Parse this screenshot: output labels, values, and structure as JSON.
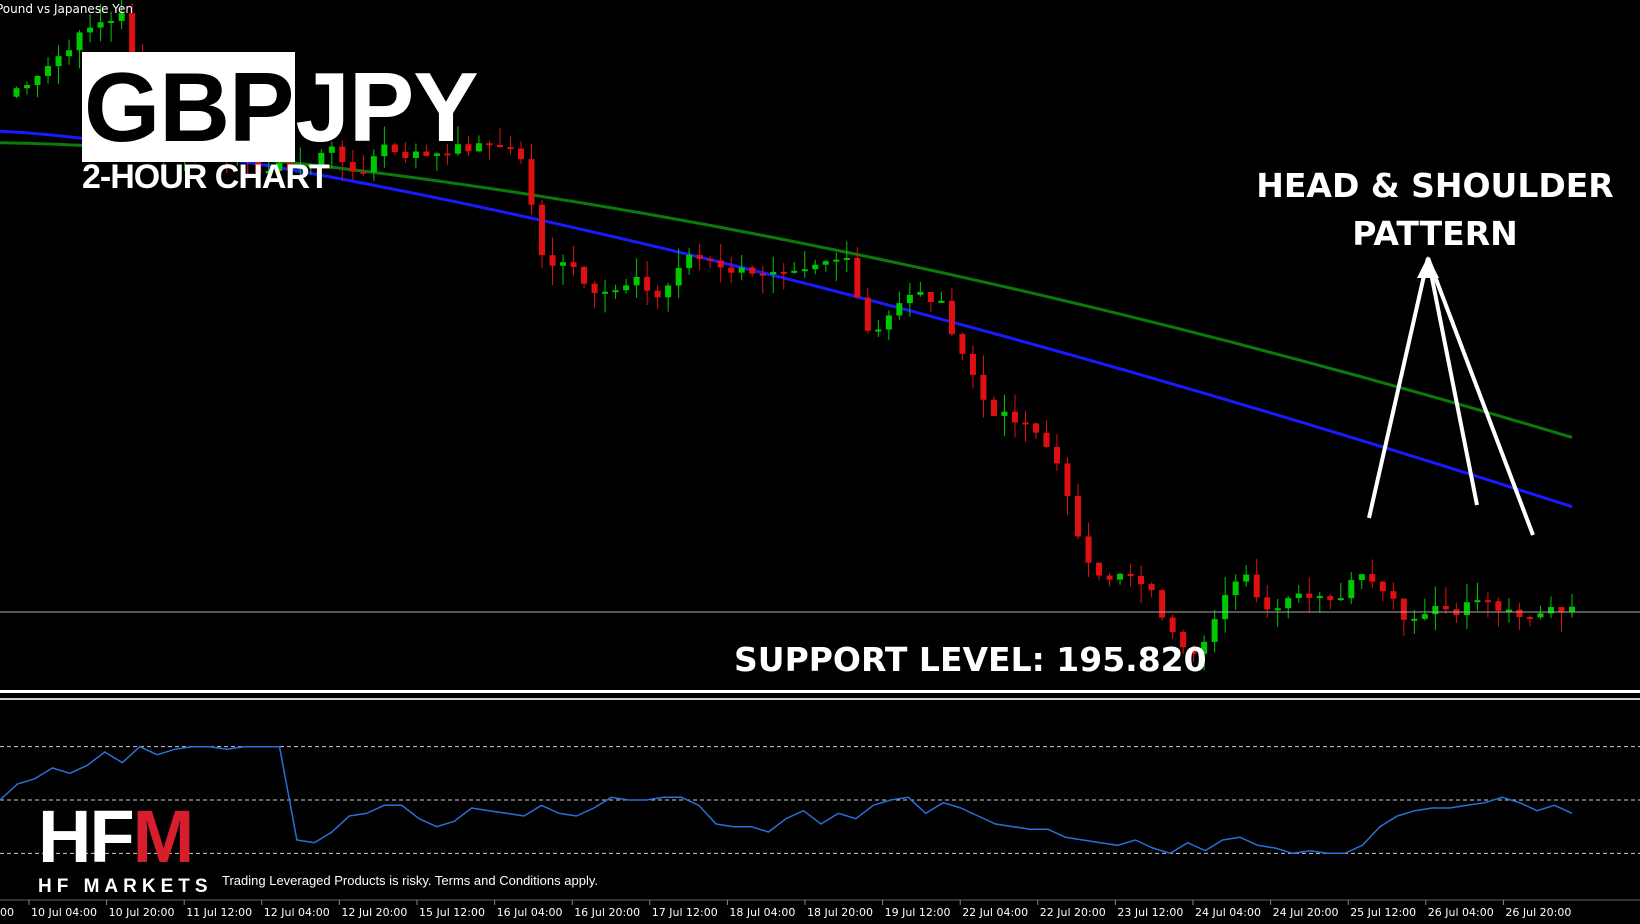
{
  "header": {
    "symbol_description": "Pound vs Japanese Yen",
    "title_part1": "GBP",
    "title_part2": "JPY",
    "subtitle": "2-HOUR CHART"
  },
  "annotations": {
    "pattern": [
      "HEAD & SHOULDER",
      "PATTERN"
    ],
    "support": "SUPPORT LEVEL: 195.820"
  },
  "branding": {
    "logo_left": "HF",
    "logo_right": "M",
    "name": "HF MARKETS",
    "disclaimer": "Trading Leveraged Products is risky. Terms and Conditions apply.",
    "accent_color": "#d81e2c"
  },
  "colors": {
    "background": "#000000",
    "bull": "#00c800",
    "bear": "#e01010",
    "ma_fast": "#1a1aff",
    "ma_slow": "#0a7a0a",
    "oscillator": "#2a6fd6",
    "support_line": "#aaaaaa"
  },
  "chart_data": {
    "type": "candlestick",
    "title": "GBPJPY",
    "subtitle": "2-HOUR CHART",
    "ylim": [
      195.0,
      206.6
    ],
    "support_level": 195.82,
    "time_axis": {
      "ticks": [
        "10 Jul 04:00",
        "10 Jul 20:00",
        "11 Jul 12:00",
        "12 Jul 04:00",
        "12 Jul 20:00",
        "15 Jul 12:00",
        "16 Jul 04:00",
        "16 Jul 20:00",
        "17 Jul 12:00",
        "18 Jul 04:00",
        "18 Jul 20:00",
        "19 Jul 12:00",
        "22 Jul 04:00",
        "22 Jul 20:00",
        "23 Jul 12:00",
        "24 Jul 04:00",
        "24 Jul 20:00",
        "25 Jul 12:00",
        "26 Jul 04:00",
        "26 Jul 20:00"
      ],
      "first_tick_fragment": "00"
    },
    "candle_key_closes": [
      205.1,
      205.4,
      205.7,
      206.1,
      206.4,
      206.5,
      204.5,
      203.9,
      204.3,
      204.2,
      204.0,
      203.8,
      203.9,
      203.9,
      204.3,
      203.6,
      204.3,
      204.1,
      204.1,
      204.2,
      204.2,
      204.3,
      204.1,
      202.2,
      202.3,
      201.8,
      201.7,
      201.9,
      201.6,
      202.3,
      202.3,
      202.1,
      202.1,
      202.0,
      202.0,
      202.2,
      202.3,
      200.9,
      201.5,
      201.7,
      201.5,
      200.6,
      199.7,
      199.5,
      199.3,
      198.8,
      197.2,
      196.8,
      196.8,
      196.5,
      195.7,
      195.5,
      196.4,
      196.8,
      196.2,
      196.5,
      196.5,
      196.4,
      196.9,
      196.6,
      196.0,
      196.3,
      196.2,
      196.4,
      196.2,
      196.0,
      196.3,
      196.2
    ],
    "moving_averages": [
      {
        "name": "",
        "color": "#0a7a0a",
        "start": 204.3,
        "end": 199.2
      },
      {
        "name": "",
        "color": "#1a1aff",
        "start": 204.5,
        "end": 198.0
      }
    ],
    "oscillator": {
      "levels": [
        70,
        50,
        30
      ],
      "approx_values": [
        50,
        56,
        58,
        62,
        60,
        63,
        68,
        64,
        70,
        67,
        69,
        70,
        70,
        69,
        70,
        70,
        70,
        35,
        34,
        38,
        44,
        45,
        48,
        48,
        43,
        40,
        42,
        47,
        46,
        45,
        44,
        48,
        45,
        44,
        47,
        51,
        50,
        50,
        51,
        51,
        48,
        41,
        40,
        40,
        38,
        43,
        46,
        41,
        45,
        43,
        48,
        50,
        51,
        45,
        49,
        47,
        44,
        41,
        40,
        39,
        39,
        36,
        35,
        34,
        33,
        35,
        32,
        30,
        34,
        31,
        35,
        36,
        33,
        32,
        30,
        31,
        30,
        30,
        33,
        40,
        44,
        46,
        47,
        47,
        48,
        49,
        51,
        49,
        46,
        48,
        45
      ]
    }
  }
}
